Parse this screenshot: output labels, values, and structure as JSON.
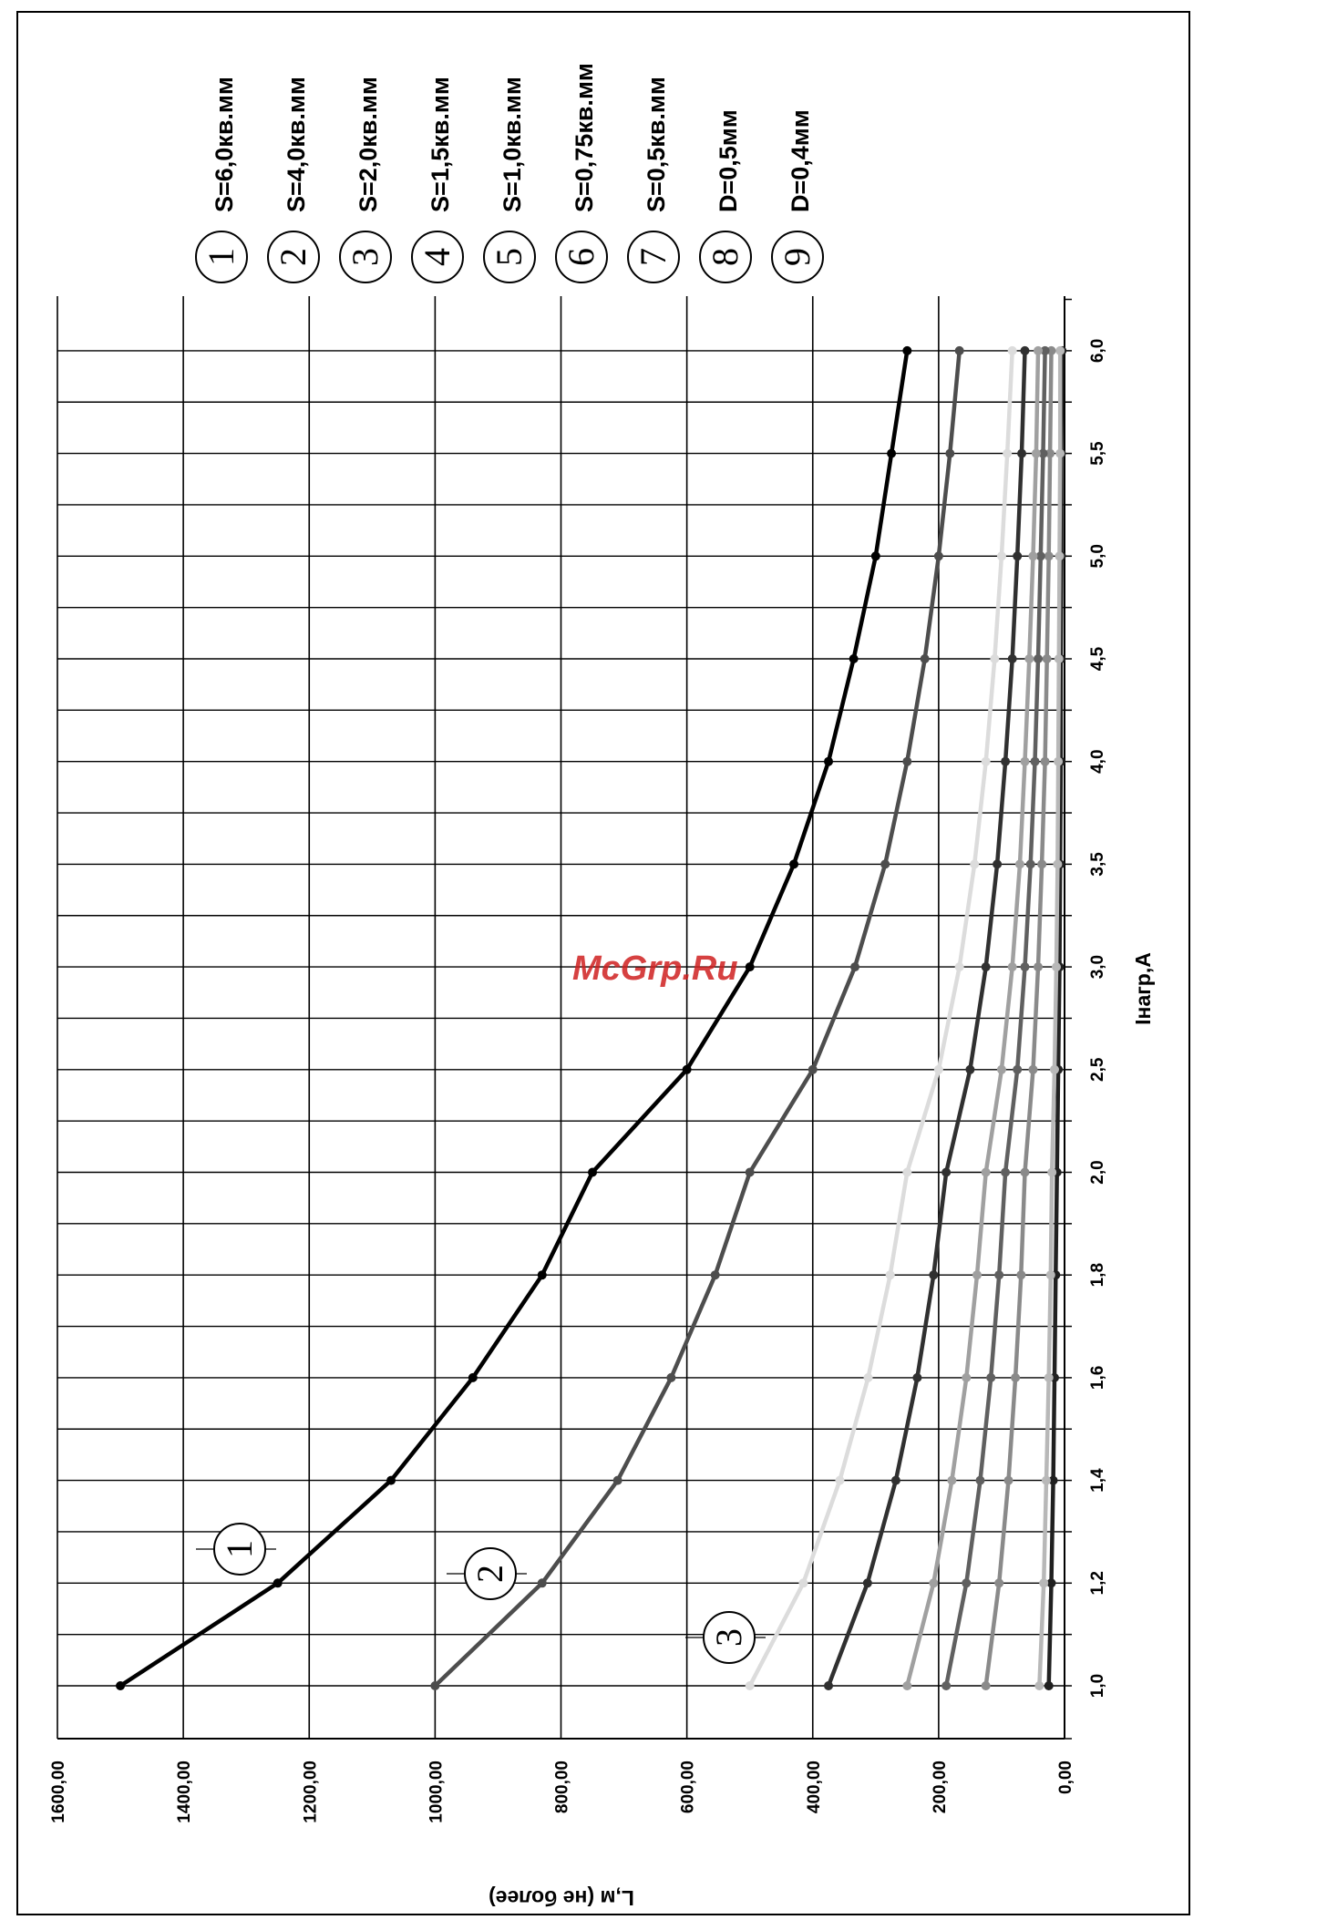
{
  "chart_data": {
    "type": "line",
    "x": [
      "1,0",
      "1,2",
      "1,4",
      "1,6",
      "1,8",
      "2,0",
      "2,5",
      "3,0",
      "3,5",
      "4,0",
      "4,5",
      "5,0",
      "5,5",
      "6,0"
    ],
    "xlabel": "Iнагр,А",
    "ylabel": "L,м (не более)",
    "ylim": [
      0,
      1600
    ],
    "y_ticks": [
      "0,00",
      "200,00",
      "400,00",
      "600,00",
      "800,00",
      "1000,00",
      "1200,00",
      "1400,00",
      "1600,00"
    ],
    "grid": true,
    "legend_placement": "top",
    "series": [
      {
        "id": "1",
        "name": "S=6,0кв.мм",
        "color": "#000000",
        "values": [
          1500,
          1250,
          1070,
          940,
          830,
          750,
          600,
          500,
          430,
          375,
          335,
          300,
          275,
          250
        ]
      },
      {
        "id": "2",
        "name": "S=4,0кв.мм",
        "color": "#4d4d4d",
        "values": [
          1000,
          830,
          710,
          625,
          555,
          500,
          400,
          333,
          285,
          250,
          222,
          200,
          182,
          167
        ]
      },
      {
        "id": "3",
        "name": "S=2,0кв.мм",
        "color": "#dcdcdc",
        "values": [
          500,
          415,
          357,
          312,
          277,
          250,
          200,
          167,
          143,
          125,
          111,
          100,
          91,
          83
        ]
      },
      {
        "id": "4",
        "name": "S=1,5кв.мм",
        "color": "#303030",
        "values": [
          375,
          313,
          268,
          234,
          208,
          188,
          150,
          125,
          107,
          94,
          83,
          75,
          68,
          63
        ]
      },
      {
        "id": "5",
        "name": "S=1,0кв.мм",
        "color": "#a0a0a0",
        "values": [
          250,
          208,
          179,
          156,
          139,
          125,
          100,
          83,
          71,
          63,
          56,
          50,
          45,
          42
        ]
      },
      {
        "id": "6",
        "name": "S=0,75кв.мм",
        "color": "#606060",
        "values": [
          188,
          156,
          134,
          117,
          104,
          94,
          75,
          63,
          54,
          47,
          42,
          38,
          34,
          31
        ]
      },
      {
        "id": "7",
        "name": "S=0,5кв.мм",
        "color": "#8a8a8a",
        "values": [
          125,
          104,
          89,
          78,
          69,
          63,
          50,
          42,
          36,
          31,
          28,
          25,
          23,
          21
        ]
      },
      {
        "id": "8",
        "name": "D=0,5мм",
        "color": "#b8b8b8",
        "values": [
          40,
          33,
          29,
          25,
          22,
          20,
          16,
          13,
          11,
          10,
          9,
          8,
          7,
          7
        ]
      },
      {
        "id": "9",
        "name": "D=0,4мм",
        "color": "#202020",
        "values": [
          25,
          21,
          18,
          16,
          14,
          12,
          10,
          8,
          7,
          6,
          6,
          5,
          5,
          4
        ]
      }
    ],
    "curve_labels": [
      "1",
      "2",
      "3"
    ]
  },
  "watermark": "McGrp.Ru"
}
